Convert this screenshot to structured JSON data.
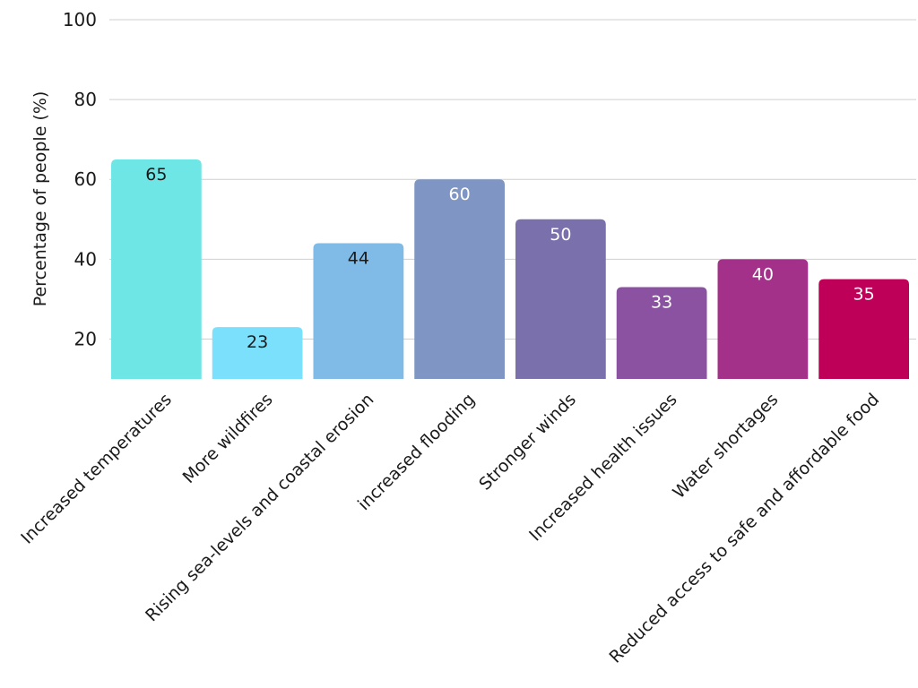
{
  "chart_data": {
    "type": "bar",
    "title": "",
    "xlabel": "",
    "ylabel": "Percentage of people (%)",
    "ylim": [
      10,
      100
    ],
    "yticks": [
      20,
      40,
      60,
      80,
      100
    ],
    "grid": true,
    "categories": [
      "Increased temperatures",
      "More wildfires",
      "Rising sea-levels and coastal erosion",
      "increased flooding",
      "Stronger winds",
      "Increased health issues",
      "Water shortages",
      "Reduced access to safe and affordable food"
    ],
    "values": [
      65,
      23,
      44,
      60,
      50,
      33,
      40,
      35
    ],
    "colors": [
      "#6ee6e6",
      "#7ae0fb",
      "#7fbbe6",
      "#7f96c4",
      "#7a70ac",
      "#8a52a0",
      "#a43189",
      "#bf0058"
    ],
    "value_label_colors": [
      "#1a1a1a",
      "#1a1a1a",
      "#1a1a1a",
      "#ffffff",
      "#ffffff",
      "#ffffff",
      "#ffffff",
      "#ffffff"
    ]
  }
}
